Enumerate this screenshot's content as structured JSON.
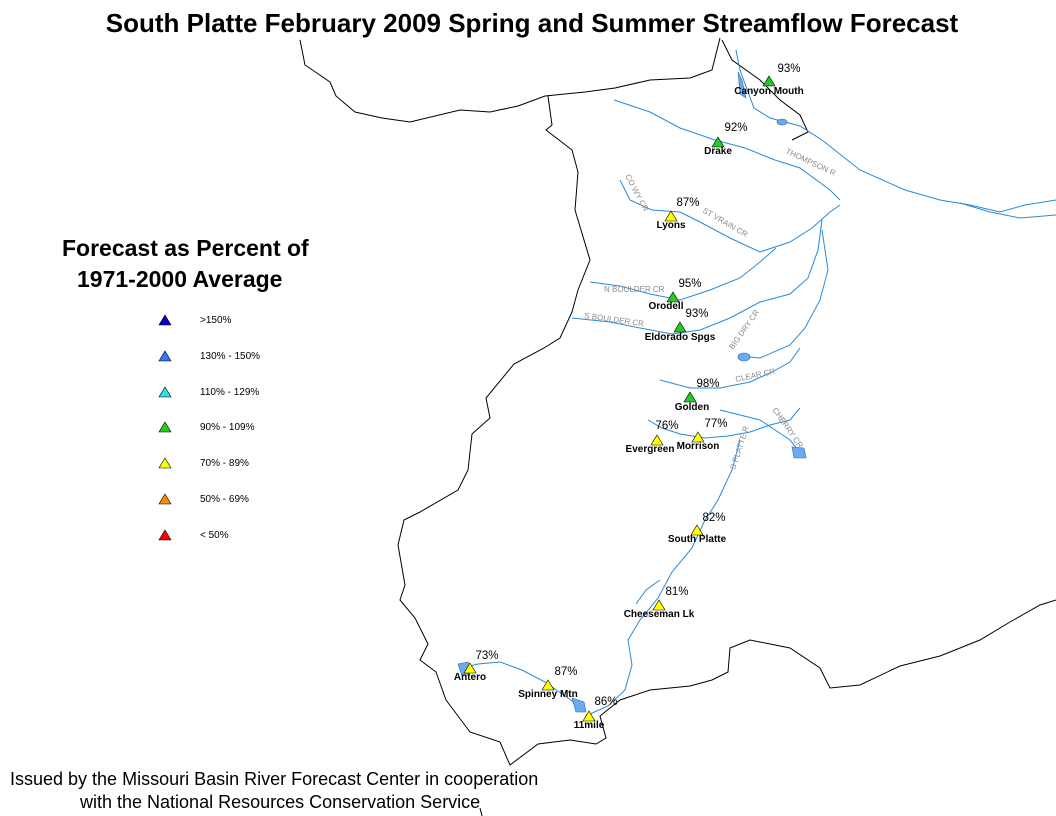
{
  "title": "South Platte February 2009 Spring and Summer Streamflow Forecast",
  "legend": {
    "title_line1": "Forecast as Percent of",
    "title_line2": "1971-2000 Average",
    "items": [
      {
        "label": ">150%",
        "color": "#0000cc"
      },
      {
        "label": "130% - 150%",
        "color": "#3377ff"
      },
      {
        "label": "110% - 129%",
        "color": "#33e0e0"
      },
      {
        "label": "90% - 109%",
        "color": "#22cc22"
      },
      {
        "label": "70% - 89%",
        "color": "#ffff00"
      },
      {
        "label": "50% - 69%",
        "color": "#ff8800"
      },
      {
        "label": "< 50%",
        "color": "#ff0000"
      }
    ]
  },
  "stations": [
    {
      "name": "Canyon Mouth",
      "percent": "93%",
      "category": "90% - 109%"
    },
    {
      "name": "Drake",
      "percent": "92%",
      "category": "90% - 109%"
    },
    {
      "name": "Lyons",
      "percent": "87%",
      "category": "70% - 89%"
    },
    {
      "name": "Orodell",
      "percent": "95%",
      "category": "90% - 109%"
    },
    {
      "name": "Eldorado Spgs",
      "percent": "93%",
      "category": "90% - 109%"
    },
    {
      "name": "Golden",
      "percent": "98%",
      "category": "90% - 109%"
    },
    {
      "name": "Morrison",
      "percent": "77%",
      "category": "70% - 89%"
    },
    {
      "name": "Evergreen",
      "percent": "76%",
      "category": "70% - 89%"
    },
    {
      "name": "South Platte",
      "percent": "82%",
      "category": "70% - 89%"
    },
    {
      "name": "Cheeseman Lk",
      "percent": "81%",
      "category": "70% - 89%"
    },
    {
      "name": "Antero",
      "percent": "73%",
      "category": "70% - 89%"
    },
    {
      "name": "Spinney Mtn",
      "percent": "87%",
      "category": "70% - 89%"
    },
    {
      "name": "11mile",
      "percent": "86%",
      "category": "70% - 89%"
    }
  ],
  "rivers": [
    "THOMPSON R",
    "ST VRAIN CR",
    "N BOULDER CR",
    "S BOULDER CR",
    "BIG DRY CR",
    "CLEAR CR",
    "CHERRY CR",
    "S PLATTE R",
    "CO WY CR"
  ],
  "footer": {
    "line1": "Issued by the Missouri Basin River Forecast Center in cooperation",
    "line2": "with the National Resources Conservation Service"
  },
  "colors": {
    "river": "#2a8ad8",
    "lake": "#6aaaf0",
    "boundary": "#000000"
  }
}
